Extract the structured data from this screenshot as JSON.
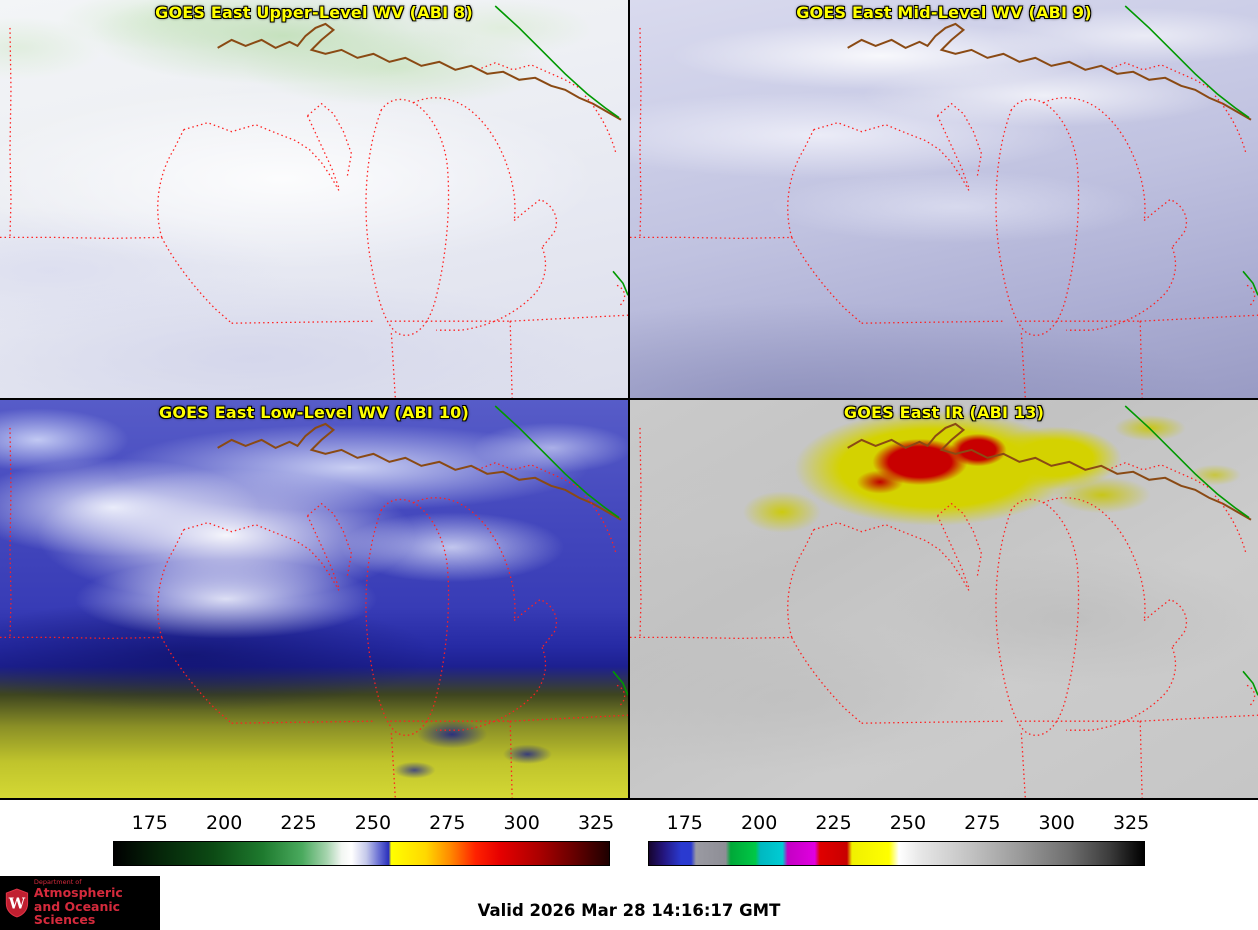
{
  "panels": [
    {
      "id": "abi8",
      "title": "GOES East Upper-Level WV (ABI 8)"
    },
    {
      "id": "abi9",
      "title": "GOES East Mid-Level WV (ABI 9)"
    },
    {
      "id": "abi10",
      "title": "GOES East Low-Level WV (ABI 10)"
    },
    {
      "id": "abi13",
      "title": "GOES East IR (ABI 13)"
    }
  ],
  "colorbars": [
    {
      "name": "wv-temperature-colorbar",
      "ticks": [
        "175",
        "200",
        "225",
        "250",
        "275",
        "300",
        "325"
      ],
      "tick_first_pct": 7.4,
      "tick_last_pct": 97.2,
      "gradient": [
        [
          "#000000",
          0
        ],
        [
          "#06280a",
          10
        ],
        [
          "#0c4a14",
          20
        ],
        [
          "#1e7a2e",
          30
        ],
        [
          "#4aaa5e",
          38
        ],
        [
          "#a6d4ae",
          43
        ],
        [
          "#f2f6f2",
          46
        ],
        [
          "#ffffff",
          48
        ],
        [
          "#c4c8ea",
          51
        ],
        [
          "#6a70d4",
          53.5
        ],
        [
          "#2a30bc",
          55.5
        ],
        [
          "#ffff00",
          56
        ],
        [
          "#ffd800",
          63
        ],
        [
          "#ff8800",
          68
        ],
        [
          "#ff2200",
          73
        ],
        [
          "#e60000",
          78
        ],
        [
          "#aa0000",
          86
        ],
        [
          "#660000",
          93
        ],
        [
          "#1e0000",
          100
        ]
      ]
    },
    {
      "name": "ir-temperature-colorbar",
      "ticks": [
        "175",
        "200",
        "225",
        "250",
        "275",
        "300",
        "325"
      ],
      "tick_first_pct": 7.4,
      "tick_last_pct": 97.2,
      "gradient": [
        [
          "#16042e",
          0
        ],
        [
          "#241680",
          3
        ],
        [
          "#2a3ad0",
          6.5
        ],
        [
          "#2a3ad0",
          8.5
        ],
        [
          "#9a9aa2",
          9.5
        ],
        [
          "#8e8e96",
          15.5
        ],
        [
          "#00a838",
          16.5
        ],
        [
          "#00c846",
          21.5
        ],
        [
          "#00b8c0",
          22.5
        ],
        [
          "#00ccd4",
          27
        ],
        [
          "#c400c4",
          28
        ],
        [
          "#e000e0",
          33.5
        ],
        [
          "#e00000",
          34.5
        ],
        [
          "#c80000",
          40
        ],
        [
          "#f0f000",
          41
        ],
        [
          "#ffff00",
          48.5
        ],
        [
          "#ffffff",
          50.5
        ],
        [
          "#e6e6e6",
          55
        ],
        [
          "#c2c2c2",
          65
        ],
        [
          "#9a9a9a",
          75
        ],
        [
          "#6e6e6e",
          85
        ],
        [
          "#3c3c3c",
          93
        ],
        [
          "#000000",
          100
        ]
      ]
    }
  ],
  "footer": {
    "valid_text": "Valid 2026 Mar 28 14:16:17 GMT"
  },
  "logo": {
    "department": "Department of",
    "line1": "Atmospheric",
    "line2": "and Oceanic Sciences",
    "crest_letter": "W"
  },
  "colors": {
    "title_text": "#ffff00",
    "state_boundary": "#ff2020",
    "shoreline": "#8a4a14",
    "border_line": "#009900",
    "logo_red": "#d42a3c"
  }
}
